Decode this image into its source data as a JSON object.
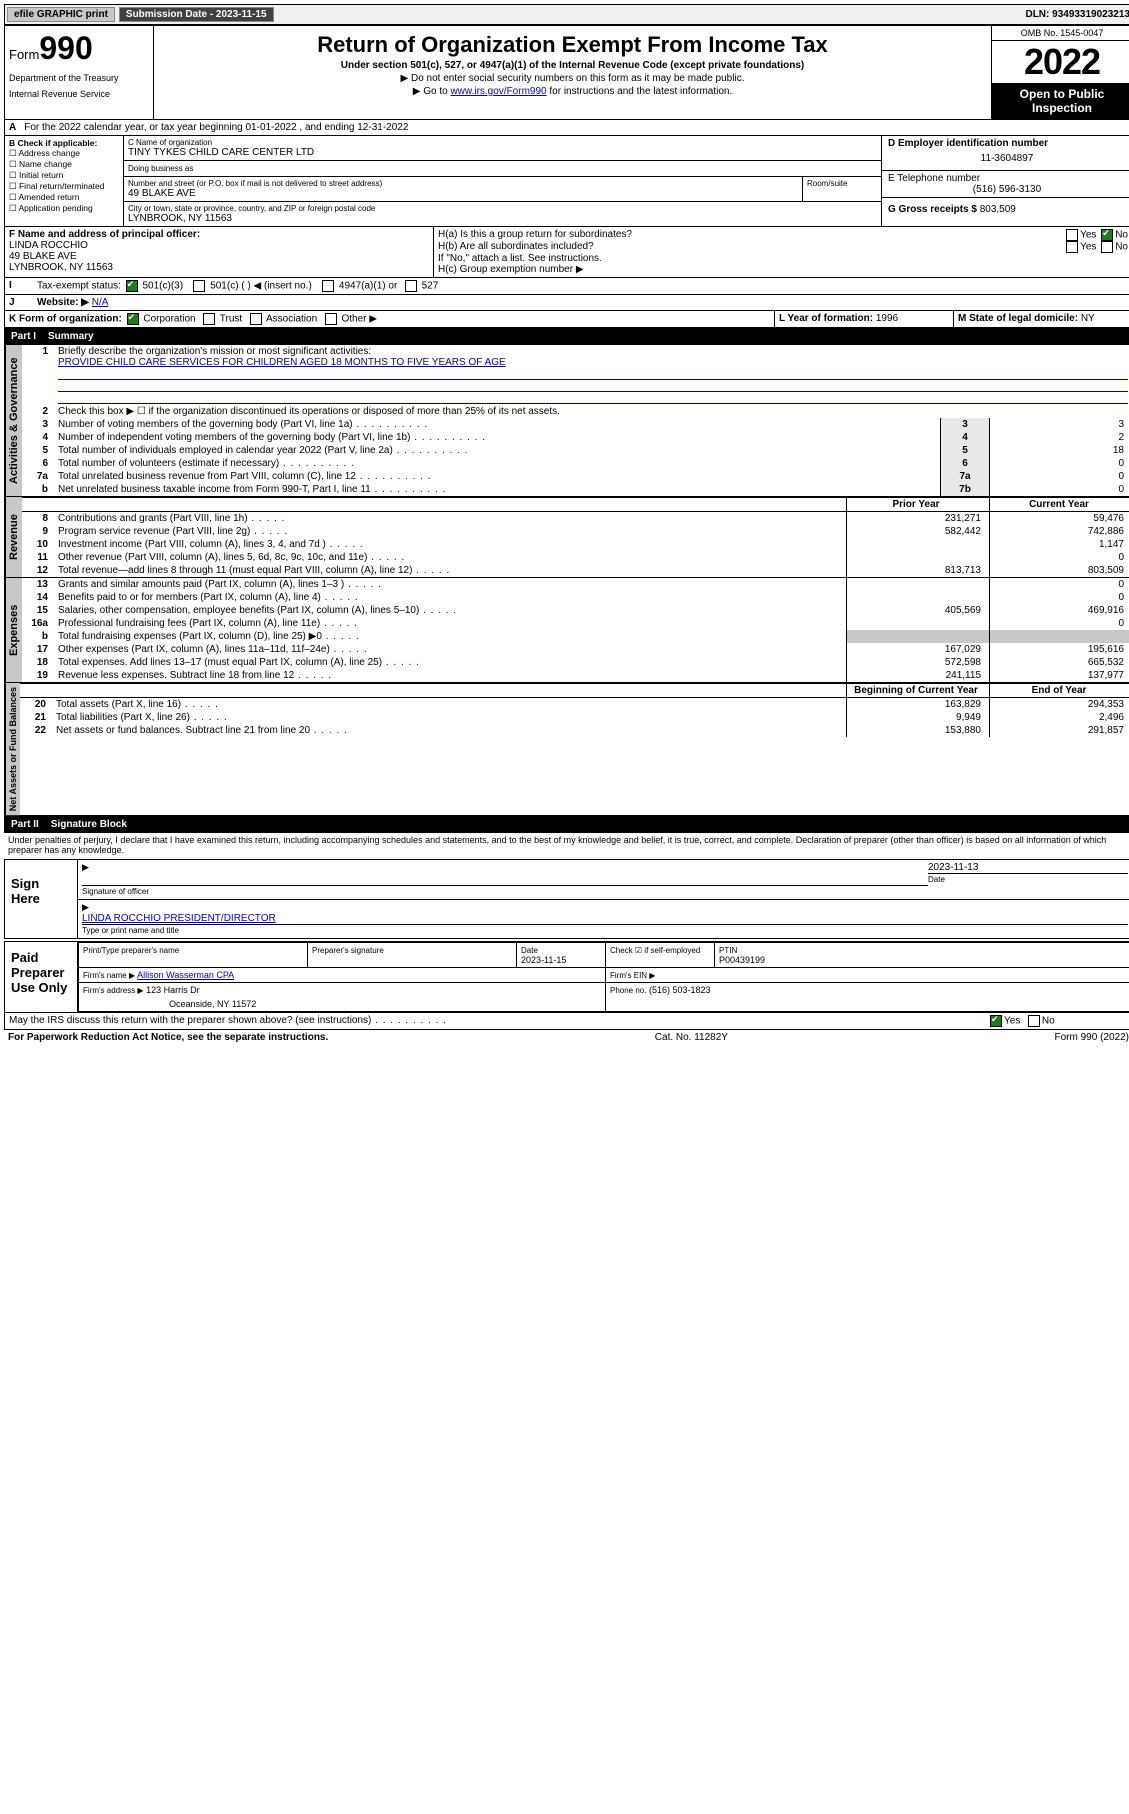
{
  "topbar": {
    "efile": "efile GRAPHIC print",
    "submission_label": "Submission Date - 2023-11-15",
    "dln_label": "DLN: 93493319023213"
  },
  "header": {
    "form_prefix": "Form",
    "form_number": "990",
    "dept": "Department of the Treasury",
    "irs": "Internal Revenue Service",
    "title": "Return of Organization Exempt From Income Tax",
    "subtitle": "Under section 501(c), 527, or 4947(a)(1) of the Internal Revenue Code (except private foundations)",
    "note1": "▶ Do not enter social security numbers on this form as it may be made public.",
    "note2_pre": "▶ Go to ",
    "note2_link": "www.irs.gov/Form990",
    "note2_post": " for instructions and the latest information.",
    "omb": "OMB No. 1545-0047",
    "year": "2022",
    "open": "Open to Public Inspection"
  },
  "period": {
    "text": "For the 2022 calendar year, or tax year beginning 01-01-2022   , and ending 12-31-2022"
  },
  "boxB": {
    "label": "B Check if applicable:",
    "items": [
      "Address change",
      "Name change",
      "Initial return",
      "Final return/terminated",
      "Amended return",
      "Application pending"
    ]
  },
  "boxC": {
    "name_label": "C Name of organization",
    "name": "TINY TYKES CHILD CARE CENTER LTD",
    "dba_label": "Doing business as",
    "street_label": "Number and street (or P.O. box if mail is not delivered to street address)",
    "room_label": "Room/suite",
    "street": "49 BLAKE AVE",
    "city_label": "City or town, state or province, country, and ZIP or foreign postal code",
    "city": "LYNBROOK, NY  11563"
  },
  "boxD": {
    "label": "D Employer identification number",
    "value": "11-3604897"
  },
  "boxE": {
    "label": "E Telephone number",
    "value": "(516) 596-3130"
  },
  "boxG": {
    "label": "G Gross receipts $",
    "value": "803,509"
  },
  "boxF": {
    "label": "F Name and address of principal officer:",
    "name": "LINDA ROCCHIO",
    "street": "49 BLAKE AVE",
    "city": "LYNBROOK, NY  11563"
  },
  "boxH": {
    "a": "H(a)  Is this a group return for subordinates?",
    "b": "H(b)  Are all subordinates included?",
    "b_note": "If \"No,\" attach a list. See instructions.",
    "c": "H(c)  Group exemption number ▶",
    "yes": "Yes",
    "no": "No"
  },
  "boxI": {
    "label": "Tax-exempt status:",
    "opt1": "501(c)(3)",
    "opt2": "501(c) (   ) ◀ (insert no.)",
    "opt3": "4947(a)(1) or",
    "opt4": "527"
  },
  "boxJ": {
    "label": "Website: ▶",
    "value": "N/A"
  },
  "boxK": {
    "label": "K Form of organization:",
    "opts": [
      "Corporation",
      "Trust",
      "Association",
      "Other ▶"
    ]
  },
  "boxL": {
    "label": "L Year of formation:",
    "value": "1996"
  },
  "boxM": {
    "label": "M State of legal domicile:",
    "value": "NY"
  },
  "part1": {
    "label": "Part I",
    "title": "Summary",
    "line1_label": "Briefly describe the organization's mission or most significant activities:",
    "line1_value": "PROVIDE CHILD CARE SERVICES FOR CHILDREN AGED 18 MONTHS TO FIVE YEARS OF AGE",
    "line2": "Check this box ▶ ☐  if the organization discontinued its operations or disposed of more than 25% of its net assets.",
    "rows_governance": [
      {
        "n": "3",
        "desc": "Number of voting members of the governing body (Part VI, line 1a)",
        "box": "3",
        "v": "3"
      },
      {
        "n": "4",
        "desc": "Number of independent voting members of the governing body (Part VI, line 1b)",
        "box": "4",
        "v": "2"
      },
      {
        "n": "5",
        "desc": "Total number of individuals employed in calendar year 2022 (Part V, line 2a)",
        "box": "5",
        "v": "18"
      },
      {
        "n": "6",
        "desc": "Total number of volunteers (estimate if necessary)",
        "box": "6",
        "v": "0"
      },
      {
        "n": "7a",
        "desc": "Total unrelated business revenue from Part VIII, column (C), line 12",
        "box": "7a",
        "v": "0"
      },
      {
        "n": "b",
        "desc": "Net unrelated business taxable income from Form 990-T, Part I, line 11",
        "box": "7b",
        "v": "0"
      }
    ],
    "col_prior": "Prior Year",
    "col_current": "Current Year",
    "rows_revenue": [
      {
        "n": "8",
        "desc": "Contributions and grants (Part VIII, line 1h)",
        "p": "231,271",
        "c": "59,476"
      },
      {
        "n": "9",
        "desc": "Program service revenue (Part VIII, line 2g)",
        "p": "582,442",
        "c": "742,886"
      },
      {
        "n": "10",
        "desc": "Investment income (Part VIII, column (A), lines 3, 4, and 7d )",
        "p": "",
        "c": "1,147"
      },
      {
        "n": "11",
        "desc": "Other revenue (Part VIII, column (A), lines 5, 6d, 8c, 9c, 10c, and 11e)",
        "p": "",
        "c": "0"
      },
      {
        "n": "12",
        "desc": "Total revenue—add lines 8 through 11 (must equal Part VIII, column (A), line 12)",
        "p": "813,713",
        "c": "803,509"
      }
    ],
    "rows_expenses": [
      {
        "n": "13",
        "desc": "Grants and similar amounts paid (Part IX, column (A), lines 1–3 )",
        "p": "",
        "c": "0"
      },
      {
        "n": "14",
        "desc": "Benefits paid to or for members (Part IX, column (A), line 4)",
        "p": "",
        "c": "0"
      },
      {
        "n": "15",
        "desc": "Salaries, other compensation, employee benefits (Part IX, column (A), lines 5–10)",
        "p": "405,569",
        "c": "469,916"
      },
      {
        "n": "16a",
        "desc": "Professional fundraising fees (Part IX, column (A), line 11e)",
        "p": "",
        "c": "0"
      },
      {
        "n": "b",
        "desc": "Total fundraising expenses (Part IX, column (D), line 25) ▶0",
        "p": "grey",
        "c": "grey"
      },
      {
        "n": "17",
        "desc": "Other expenses (Part IX, column (A), lines 11a–11d, 11f–24e)",
        "p": "167,029",
        "c": "195,616"
      },
      {
        "n": "18",
        "desc": "Total expenses. Add lines 13–17 (must equal Part IX, column (A), line 25)",
        "p": "572,598",
        "c": "665,532"
      },
      {
        "n": "19",
        "desc": "Revenue less expenses. Subtract line 18 from line 12",
        "p": "241,115",
        "c": "137,977"
      }
    ],
    "col_begin": "Beginning of Current Year",
    "col_end": "End of Year",
    "rows_assets": [
      {
        "n": "20",
        "desc": "Total assets (Part X, line 16)",
        "p": "163,829",
        "c": "294,353"
      },
      {
        "n": "21",
        "desc": "Total liabilities (Part X, line 26)",
        "p": "9,949",
        "c": "2,496"
      },
      {
        "n": "22",
        "desc": "Net assets or fund balances. Subtract line 21 from line 20",
        "p": "153,880",
        "c": "291,857"
      }
    ],
    "tabs": {
      "gov": "Activities & Governance",
      "rev": "Revenue",
      "exp": "Expenses",
      "net": "Net Assets or Fund Balances"
    }
  },
  "part2": {
    "label": "Part II",
    "title": "Signature Block",
    "jurat": "Under penalties of perjury, I declare that I have examined this return, including accompanying schedules and statements, and to the best of my knowledge and belief, it is true, correct, and complete. Declaration of preparer (other than officer) is based on all information of which preparer has any knowledge.",
    "sign_here": "Sign Here",
    "sig_officer": "Signature of officer",
    "sig_date": "2023-11-13",
    "date_label": "Date",
    "officer_name": "LINDA ROCCHIO  PRESIDENT/DIRECTOR",
    "officer_sub": "Type or print name and title",
    "paid": "Paid Preparer Use Only",
    "prep_name_label": "Print/Type preparer's name",
    "prep_sig_label": "Preparer's signature",
    "prep_date_label": "Date",
    "prep_date": "2023-11-15",
    "self_emp": "Check ☑ if self-employed",
    "ptin_label": "PTIN",
    "ptin": "P00439199",
    "firm_name_label": "Firm's name    ▶",
    "firm_name": "Allison Wasserman CPA",
    "firm_ein_label": "Firm's EIN ▶",
    "firm_addr_label": "Firm's address ▶",
    "firm_addr1": "123 Harris Dr",
    "firm_addr2": "Oceanside, NY  11572",
    "firm_phone_label": "Phone no.",
    "firm_phone": "(516) 503-1823",
    "discuss": "May the IRS discuss this return with the preparer shown above? (see instructions)",
    "yes": "Yes",
    "no": "No"
  },
  "footer": {
    "left": "For Paperwork Reduction Act Notice, see the separate instructions.",
    "mid": "Cat. No. 11282Y",
    "right": "Form 990 (2022)"
  },
  "colors": {
    "link": "#0000cc",
    "check_green": "#1a7f1a",
    "grey_tab": "#c8c8c8"
  }
}
